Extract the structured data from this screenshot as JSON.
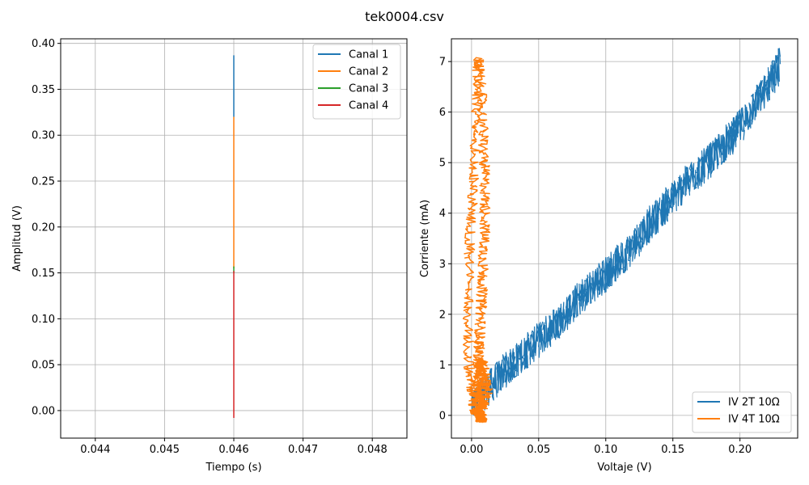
{
  "figure": {
    "title": "tek0004.csv"
  },
  "chart_data": [
    {
      "type": "line",
      "xlabel": "Tiempo (s)",
      "ylabel": "Amplitud (V)",
      "xlim": [
        0.0435,
        0.0485
      ],
      "ylim": [
        -0.03,
        0.405
      ],
      "xticks": [
        0.044,
        0.045,
        0.046,
        0.047,
        0.048
      ],
      "xtick_labels": [
        "0.044",
        "0.045",
        "0.046",
        "0.047",
        "0.048"
      ],
      "yticks": [
        0.0,
        0.05,
        0.1,
        0.15,
        0.2,
        0.25,
        0.3,
        0.35,
        0.4
      ],
      "ytick_labels": [
        "0.00",
        "0.05",
        "0.10",
        "0.15",
        "0.20",
        "0.25",
        "0.30",
        "0.35",
        "0.40"
      ],
      "grid": true,
      "legend_position": "top-right",
      "series": [
        {
          "name": "Canal 1",
          "color": "#1f77b4",
          "x": [
            0.046,
            0.046
          ],
          "y": [
            0.32,
            0.387
          ]
        },
        {
          "name": "Canal 2",
          "color": "#ff7f0e",
          "x": [
            0.046,
            0.046
          ],
          "y": [
            0.155,
            0.32
          ]
        },
        {
          "name": "Canal 3",
          "color": "#2ca02c",
          "x": [
            0.046,
            0.046
          ],
          "y": [
            0.15,
            0.157
          ]
        },
        {
          "name": "Canal 4",
          "color": "#d62728",
          "x": [
            0.046,
            0.046
          ],
          "y": [
            -0.008,
            0.152
          ]
        }
      ]
    },
    {
      "type": "line",
      "xlabel": "Voltaje (V)",
      "ylabel": "Corriente (mA)",
      "xlim": [
        -0.015,
        0.243
      ],
      "ylim": [
        -0.45,
        7.45
      ],
      "xticks": [
        0.0,
        0.05,
        0.1,
        0.15,
        0.2
      ],
      "xtick_labels": [
        "0.00",
        "0.05",
        "0.10",
        "0.15",
        "0.20"
      ],
      "yticks": [
        0,
        1,
        2,
        3,
        4,
        5,
        6,
        7
      ],
      "ytick_labels": [
        "0",
        "1",
        "2",
        "3",
        "4",
        "5",
        "6",
        "7"
      ],
      "grid": true,
      "legend_position": "bottom-right",
      "series": [
        {
          "name": "IV 2T 10Ω",
          "color": "#1f77b4",
          "x": [
            0.0,
            0.01,
            0.02,
            0.03,
            0.04,
            0.05,
            0.06,
            0.07,
            0.08,
            0.09,
            0.1,
            0.11,
            0.12,
            0.13,
            0.14,
            0.15,
            0.16,
            0.17,
            0.18,
            0.19,
            0.2,
            0.21,
            0.22,
            0.23
          ],
          "y": [
            0.2,
            0.45,
            0.75,
            1.0,
            1.25,
            1.5,
            1.75,
            2.0,
            2.3,
            2.55,
            2.8,
            3.05,
            3.35,
            3.7,
            4.0,
            4.3,
            4.6,
            4.85,
            5.1,
            5.4,
            5.7,
            6.1,
            6.5,
            6.95
          ],
          "band_halfwidth": 0.35
        },
        {
          "name": "IV 4T 10Ω",
          "color": "#ff7f0e",
          "x": [
            0.0,
            -0.002,
            -0.003,
            -0.002,
            0.0,
            0.002,
            0.004,
            0.005,
            0.006,
            0.008,
            0.009,
            0.01,
            0.01,
            0.009,
            0.008,
            0.007,
            0.006,
            0.005,
            0.006,
            0.007,
            0.008,
            0.008,
            0.007,
            0.006,
            0.005,
            0.005,
            0.006,
            0.008,
            0.01,
            0.012,
            0.009,
            0.005,
            0.002,
            0.0
          ],
          "y": [
            0.5,
            1.0,
            2.0,
            3.0,
            4.0,
            5.0,
            6.2,
            7.05,
            6.8,
            6.0,
            5.2,
            4.5,
            3.8,
            3.2,
            2.6,
            2.0,
            1.5,
            1.1,
            0.8,
            0.5,
            0.2,
            -0.05,
            -0.12,
            0.0,
            0.3,
            0.7,
            1.0,
            1.1,
            0.8,
            0.5,
            0.2,
            0.0,
            0.1,
            0.5
          ],
          "band_halfwidth": 0.004
        }
      ]
    }
  ]
}
